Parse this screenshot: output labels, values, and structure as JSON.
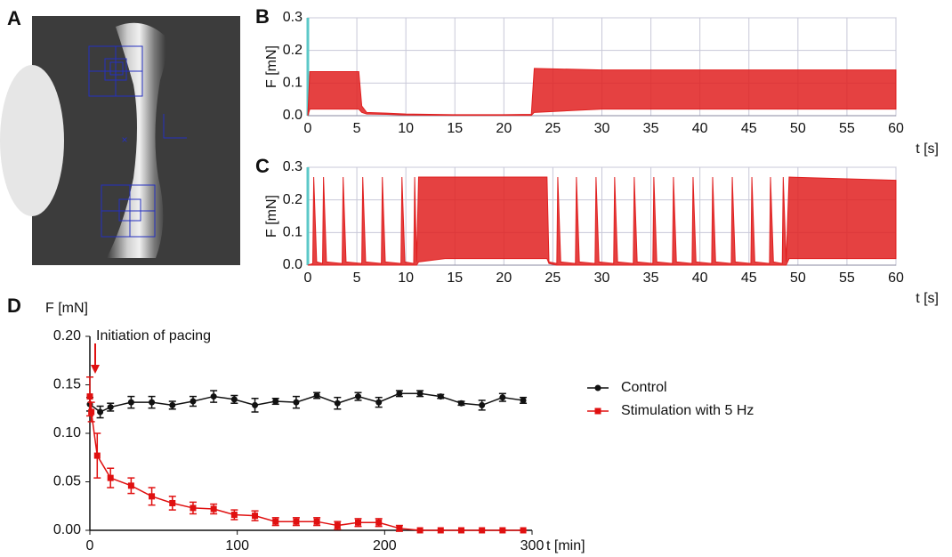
{
  "panel_labels": [
    "A",
    "B",
    "C",
    "D"
  ],
  "chart_data": [
    {
      "type": "band",
      "color": "#e02020",
      "ylabel": "F [mN]",
      "xlabel": "t [s]",
      "xlim": [
        0,
        60
      ],
      "ylim": [
        0,
        0.3
      ],
      "xticks": [
        0,
        5,
        10,
        15,
        20,
        25,
        30,
        35,
        40,
        45,
        50,
        55,
        60
      ],
      "yticks": [
        {
          "value": 0,
          "label": "0.0"
        },
        0.1,
        0.2,
        0.3
      ],
      "grid": true,
      "x": [
        0,
        0.2,
        5.2,
        5.5,
        6,
        8,
        10,
        15,
        20,
        22.8,
        23.1,
        30,
        40,
        50,
        60
      ],
      "upper": [
        0,
        0.135,
        0.135,
        0.03,
        0.01,
        0.008,
        0.005,
        0.003,
        0.003,
        0.004,
        0.145,
        0.14,
        0.14,
        0.14,
        0.14
      ],
      "lower": [
        0,
        0.02,
        0.02,
        0.01,
        0.005,
        0.004,
        0.002,
        0.001,
        0.001,
        0.001,
        0.01,
        0.02,
        0.02,
        0.02,
        0.02
      ]
    },
    {
      "type": "band",
      "color": "#e02020",
      "ylabel": "F [mN]",
      "xlabel": "t [s]",
      "xlim": [
        0,
        60
      ],
      "ylim": [
        0,
        0.3
      ],
      "xticks": [
        0,
        5,
        10,
        15,
        20,
        25,
        30,
        35,
        40,
        45,
        50,
        55,
        60
      ],
      "yticks": [
        {
          "value": 0,
          "label": "0.0"
        },
        0.1,
        0.2,
        0.3
      ],
      "grid": true,
      "x": [
        0,
        0.5,
        0.6,
        0.9,
        1.5,
        1.6,
        1.9,
        3.5,
        3.6,
        3.9,
        5.5,
        5.6,
        5.9,
        7.5,
        7.6,
        7.9,
        9.5,
        9.6,
        9.9,
        10.8,
        10.9,
        11.1,
        11.3,
        14,
        24.4,
        24.6,
        25.4,
        25.5,
        25.8,
        27.3,
        27.4,
        27.7,
        29.3,
        29.4,
        29.7,
        31.2,
        31.3,
        31.6,
        33.2,
        33.3,
        33.6,
        35.2,
        35.3,
        35.6,
        37.2,
        37.3,
        37.6,
        39.2,
        39.3,
        39.6,
        41.2,
        41.3,
        41.6,
        43.2,
        43.3,
        43.6,
        45.2,
        45.3,
        45.6,
        47.1,
        47.2,
        47.5,
        48.4,
        48.5,
        48.8,
        49.1,
        60
      ],
      "upper": [
        0,
        0.005,
        0.27,
        0.01,
        0.005,
        0.27,
        0.01,
        0.005,
        0.27,
        0.01,
        0.005,
        0.27,
        0.01,
        0.005,
        0.27,
        0.01,
        0.005,
        0.27,
        0.01,
        0.005,
        0.27,
        0.01,
        0.27,
        0.27,
        0.27,
        0.01,
        0.005,
        0.27,
        0.01,
        0.005,
        0.27,
        0.01,
        0.005,
        0.27,
        0.01,
        0.005,
        0.27,
        0.01,
        0.005,
        0.27,
        0.01,
        0.005,
        0.27,
        0.01,
        0.005,
        0.27,
        0.01,
        0.005,
        0.27,
        0.01,
        0.005,
        0.27,
        0.01,
        0.005,
        0.27,
        0.01,
        0.005,
        0.27,
        0.01,
        0.005,
        0.27,
        0.01,
        0.005,
        0.27,
        0.01,
        0.27,
        0.26
      ],
      "lower": [
        0,
        0,
        0,
        0,
        0,
        0,
        0,
        0,
        0,
        0,
        0,
        0,
        0,
        0,
        0,
        0,
        0,
        0,
        0,
        0,
        0,
        0,
        0.01,
        0.02,
        0.02,
        0.005,
        0,
        0,
        0,
        0,
        0,
        0,
        0,
        0,
        0,
        0,
        0,
        0,
        0,
        0,
        0,
        0,
        0,
        0,
        0,
        0,
        0,
        0,
        0,
        0,
        0,
        0,
        0,
        0,
        0,
        0,
        0,
        0,
        0,
        0,
        0,
        0,
        0,
        0,
        0,
        0.02,
        0.02
      ]
    },
    {
      "type": "line",
      "ylabel": "F [mN]",
      "xlabel": "t [min]",
      "annotation": "Initiation of pacing",
      "xlim": [
        0,
        300
      ],
      "ylim": [
        0,
        0.2
      ],
      "xticks": [
        0,
        100,
        200,
        300
      ],
      "yticks": [
        {
          "value": 0,
          "label": "0.00"
        },
        {
          "value": 0.05,
          "label": "0.05"
        },
        {
          "value": 0.1,
          "label": "0.10"
        },
        {
          "value": 0.15,
          "label": "0.15"
        },
        {
          "value": 0.2,
          "label": "0.20"
        }
      ],
      "legend": "right",
      "series": [
        {
          "name": "Control",
          "color": "#111111",
          "marker": "circle",
          "x": [
            0,
            7,
            14,
            28,
            42,
            56,
            70,
            84,
            98,
            112,
            126,
            140,
            154,
            168,
            182,
            196,
            210,
            224,
            238,
            252,
            266,
            280,
            294
          ],
          "values": [
            0.13,
            0.122,
            0.127,
            0.132,
            0.132,
            0.129,
            0.133,
            0.138,
            0.135,
            0.129,
            0.133,
            0.132,
            0.139,
            0.131,
            0.138,
            0.132,
            0.141,
            0.141,
            0.138,
            0.131,
            0.129,
            0.137,
            0.134
          ],
          "errors": [
            0.007,
            0.006,
            0.004,
            0.006,
            0.006,
            0.004,
            0.005,
            0.006,
            0.004,
            0.007,
            0.003,
            0.006,
            0.003,
            0.006,
            0.004,
            0.005,
            0.003,
            0.003,
            0.002,
            0.002,
            0.005,
            0.004,
            0.003
          ]
        },
        {
          "name": "Stimulation with 5 Hz",
          "color": "#e01010",
          "marker": "square",
          "x": [
            0,
            1,
            5,
            14,
            28,
            42,
            56,
            70,
            84,
            98,
            112,
            126,
            140,
            154,
            168,
            182,
            196,
            210,
            224,
            238,
            252,
            266,
            280,
            294
          ],
          "values": [
            0.138,
            0.122,
            0.077,
            0.054,
            0.046,
            0.035,
            0.028,
            0.023,
            0.022,
            0.016,
            0.015,
            0.009,
            0.009,
            0.009,
            0.005,
            0.008,
            0.008,
            0.002,
            0,
            0,
            0,
            0,
            0,
            0
          ],
          "errors": [
            0.02,
            0.01,
            0.023,
            0.01,
            0.008,
            0.009,
            0.007,
            0.006,
            0.005,
            0.005,
            0.005,
            0.004,
            0.004,
            0.004,
            0.004,
            0.004,
            0.004,
            0.003,
            0,
            0,
            0,
            0,
            0,
            0
          ]
        }
      ]
    }
  ]
}
